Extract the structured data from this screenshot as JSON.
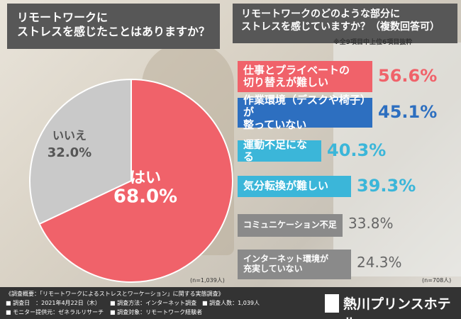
{
  "chart_data": [
    {
      "type": "pie",
      "title": "リモートワークに\nストレスを感じたことはありますか？",
      "categories": [
        "はい",
        "いいえ"
      ],
      "values": [
        68.0,
        32.0
      ],
      "value_labels": [
        "68.0%",
        "32.0%"
      ],
      "colors": [
        "#f0626a",
        "#c9c9c9"
      ],
      "sample_size": "(n=1,039人)"
    },
    {
      "type": "ranking",
      "title": "リモートワークのどのような部分に\nストレスを感じていますか？（複数回答可）",
      "subtitle": "※全9項目中上位6項目抜粋",
      "categories": [
        "仕事とプライベートの\n切り替えが難しい",
        "作業環境（デスクや椅子）が\n整っていない",
        "運動不足になる",
        "気分転換が難しい",
        "コミュニケーション不足",
        "インターネット環境が\n充実していない"
      ],
      "values": [
        56.6,
        45.1,
        40.3,
        39.3,
        33.8,
        24.3
      ],
      "value_labels": [
        "56.6%",
        "45.1%",
        "40.3%",
        "39.3%",
        "33.8%",
        "24.3%"
      ],
      "colors": [
        "#f0626a",
        "#2d6fc0",
        "#3bb6d9",
        "#3bb6d9",
        "#8a8a8a",
        "#8a8a8a"
      ],
      "sample_size": "(n=708人)"
    }
  ],
  "footer": {
    "heading": "《調査概要：「リモートワークによるストレスとワーケーション」に関する実態調査》",
    "items": [
      "■ 調査日　：2021年4月22日（木）",
      "■ 調査方法：インターネット調査",
      "■ 調査人数：1,039人",
      "■ モニター提供元：ゼネラルリサーチ",
      "■ 調査対象：リモートワーク経験者"
    ],
    "logo": "熱川プリンスホテル"
  }
}
